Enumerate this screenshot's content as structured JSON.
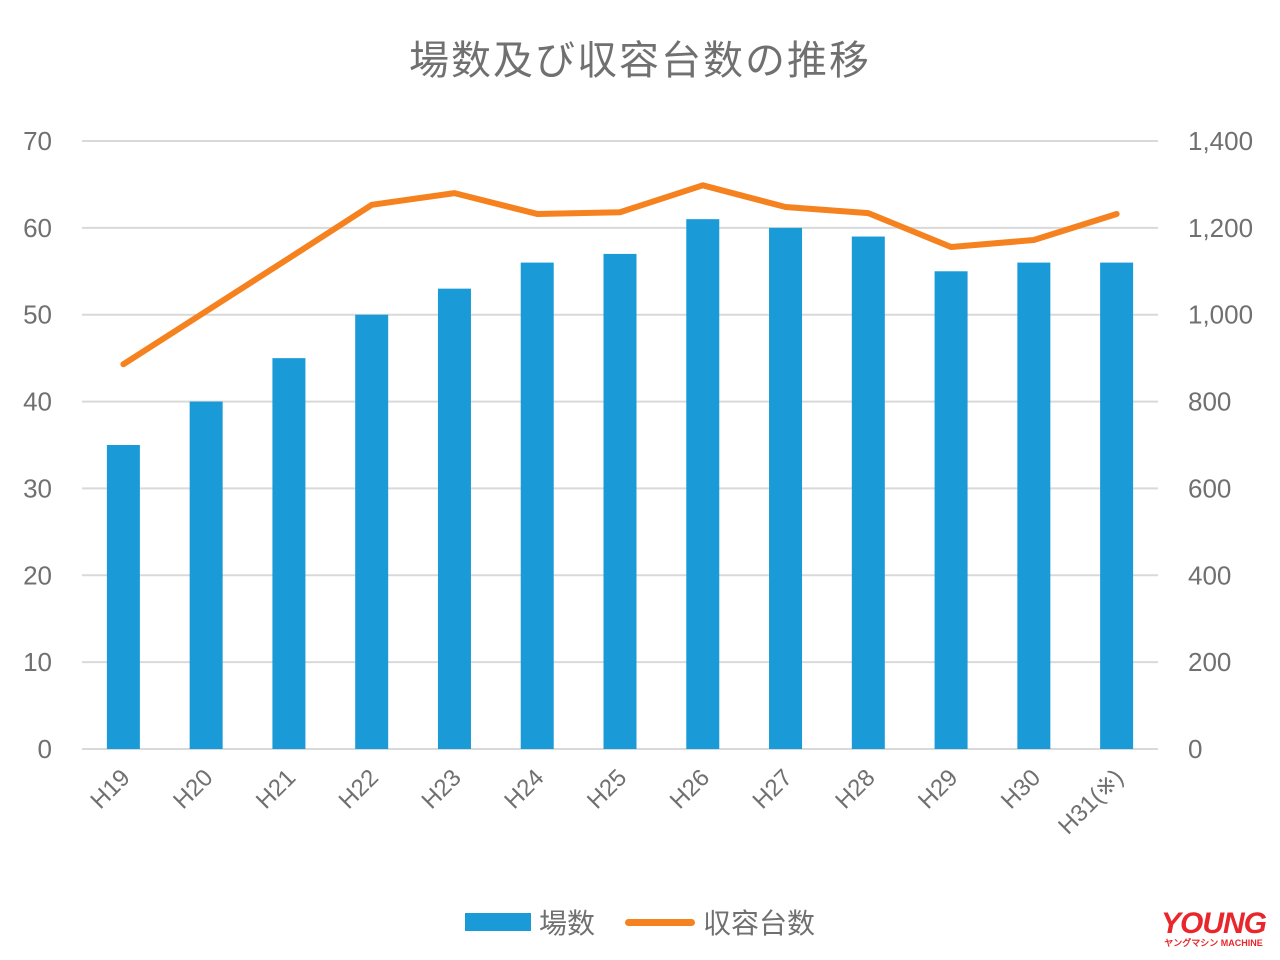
{
  "chart_data": {
    "type": "bar+line",
    "title": "場数及び収容台数の推移",
    "categories": [
      "H19",
      "H20",
      "H21",
      "H22",
      "H23",
      "H24",
      "H25",
      "H26",
      "H27",
      "H28",
      "H29",
      "H30",
      "H31(※)"
    ],
    "series": [
      {
        "name": "場数",
        "type": "bar",
        "axis": "left",
        "color": "#1a9bd7",
        "values": [
          35,
          40,
          45,
          50,
          53,
          56,
          57,
          61,
          60,
          59,
          55,
          56,
          56
        ]
      },
      {
        "name": "収容台数",
        "type": "line",
        "axis": "right",
        "color": "#f5821f",
        "values": [
          886,
          1008,
          1130,
          1253,
          1280,
          1232,
          1236,
          1298,
          1248,
          1234,
          1156,
          1172,
          1232
        ]
      }
    ],
    "y_left": {
      "range": [
        0,
        70
      ],
      "ticks": [
        "0",
        "10",
        "20",
        "30",
        "40",
        "50",
        "60",
        "70"
      ]
    },
    "y_right": {
      "range": [
        0,
        1400
      ],
      "ticks": [
        "0",
        "200",
        "400",
        "600",
        "800",
        "1,000",
        "1,200",
        "1,400"
      ]
    },
    "grid": true,
    "legend": "bottom"
  },
  "logo": {
    "text": "YOUNG",
    "subtext": "ヤングマシン MACHINE"
  }
}
